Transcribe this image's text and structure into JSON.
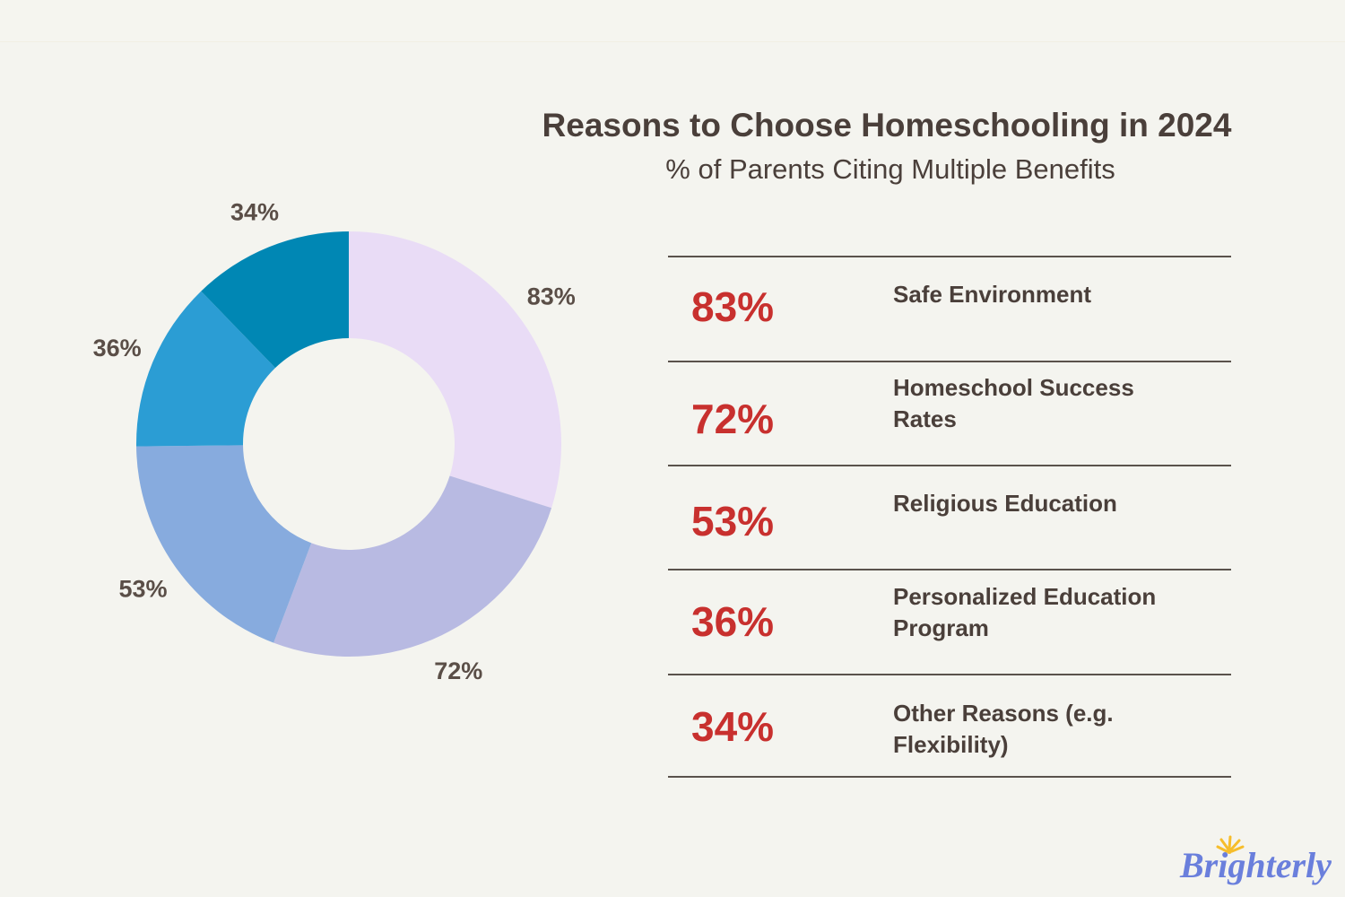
{
  "chart_data": {
    "type": "pie",
    "style": "donut",
    "title": "Reasons to Choose Homeschooling in 2024",
    "subtitle": "% of Parents Citing Multiple Benefits",
    "categories": [
      "Safe Environment",
      "Homeschool Success Rates",
      "Religious Education",
      "Personalized Education Program",
      "Other Reasons (e.g. Flexibility)"
    ],
    "values": [
      83,
      72,
      53,
      36,
      34
    ],
    "labels": [
      "83%",
      "72%",
      "53%",
      "36%",
      "34%"
    ],
    "colors": [
      "#e9dcf6",
      "#b8bae2",
      "#87abde",
      "#2b9dd4",
      "#0087b4"
    ],
    "legend": "table-right"
  },
  "table": {
    "rows": [
      {
        "pct": "83%",
        "name": "Safe Environment"
      },
      {
        "pct": "72%",
        "name": "Homeschool Success Rates"
      },
      {
        "pct": "53%",
        "name": "Religious Education"
      },
      {
        "pct": "36%",
        "name": "Personalized Education Program"
      },
      {
        "pct": "34%",
        "name": "Other Reasons (e.g. Flexibility)"
      }
    ]
  },
  "accent_color": "#c8302e",
  "brand": {
    "logo_text": "Brighterly",
    "color": "#6a7fdc",
    "sun_color": "#f6bd2b"
  }
}
